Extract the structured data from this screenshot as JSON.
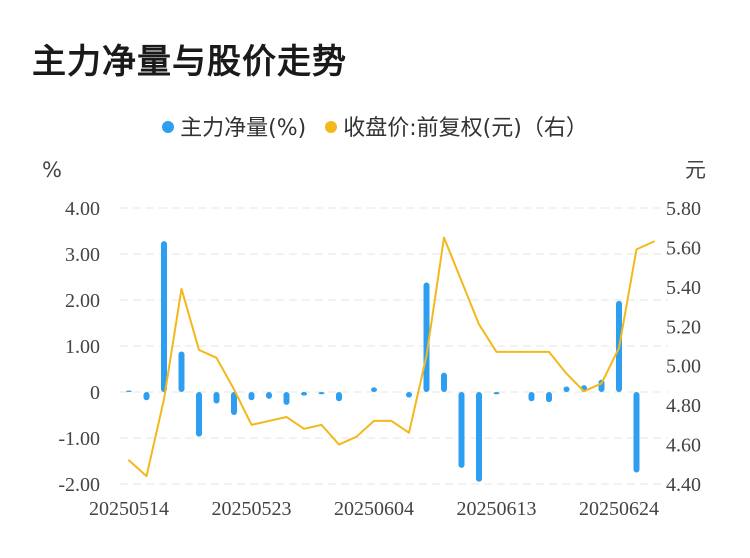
{
  "title": "主力净量与股价走势",
  "legend": {
    "bar_label": "主力净量(%)",
    "line_label": "收盘价:前复权(元)（右）"
  },
  "colors": {
    "bar": "#2e9ff0",
    "line": "#f2b81c",
    "grid": "#e6e6e6"
  },
  "chart_data": {
    "type": "bar+line",
    "title": "主力净量与股价走势",
    "left_axis": {
      "unit": "%",
      "min": -2,
      "max": 4,
      "tick_values": [
        4,
        3,
        2,
        1,
        0,
        -1,
        -2
      ],
      "tick_labels": [
        "4.00",
        "3.00",
        "2.00",
        "1.00",
        "0",
        "-1.00",
        "-2.00"
      ]
    },
    "right_axis": {
      "unit": "元",
      "min": 4.4,
      "max": 5.8,
      "tick_values": [
        5.8,
        5.6,
        5.4,
        5.2,
        5.0,
        4.8,
        4.6,
        4.4
      ],
      "tick_labels": [
        "5.80",
        "5.60",
        "5.40",
        "5.20",
        "5.00",
        "4.80",
        "4.60",
        "4.40"
      ]
    },
    "x_tick_labels": [
      "20250514",
      "20250523",
      "20250604",
      "20250613",
      "20250624"
    ],
    "x_tick_indices": [
      0,
      7,
      14,
      21,
      28
    ],
    "grid": "horizontal dashed",
    "series": [
      {
        "name": "主力净量(%)",
        "type": "bar",
        "axis": "left",
        "values": [
          0.03,
          -0.18,
          3.28,
          0.88,
          -0.97,
          -0.25,
          -0.5,
          -0.18,
          -0.15,
          -0.28,
          -0.08,
          -0.05,
          -0.2,
          0.0,
          0.1,
          0.0,
          -0.12,
          2.38,
          0.42,
          -1.65,
          -1.95,
          -0.05,
          0.0,
          -0.2,
          -0.22,
          0.12,
          0.15,
          0.27,
          1.98,
          -1.75
        ]
      },
      {
        "name": "收盘价:前复权(元)（右）",
        "type": "line",
        "axis": "right",
        "values": [
          4.52,
          4.44,
          4.83,
          5.39,
          5.08,
          5.04,
          4.88,
          4.7,
          4.72,
          4.74,
          4.68,
          4.7,
          4.6,
          4.64,
          4.72,
          4.72,
          4.66,
          5.05,
          5.65,
          5.43,
          5.21,
          5.07,
          5.07,
          5.07,
          5.07,
          4.96,
          4.87,
          4.91,
          5.09,
          5.59,
          5.63
        ]
      }
    ]
  }
}
